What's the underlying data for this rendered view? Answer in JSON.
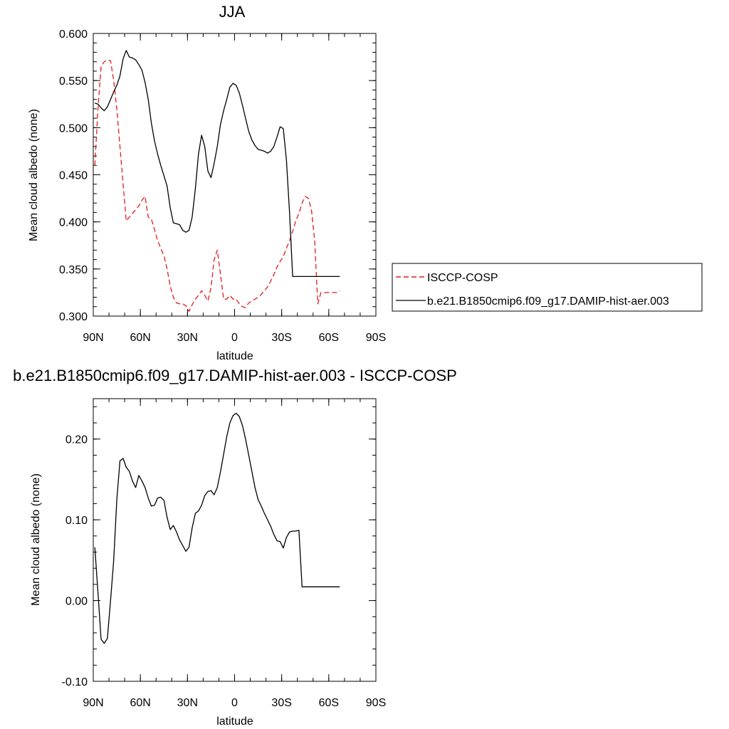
{
  "chart_data": [
    {
      "type": "line",
      "title": "JJA",
      "xlabel": "latitude",
      "ylabel": "Mean cloud albedo (none)",
      "xlim": [
        90,
        -90
      ],
      "ylim": [
        0.3,
        0.6
      ],
      "x_ticks": [
        90,
        60,
        30,
        0,
        -30,
        -60,
        -90
      ],
      "x_tick_labels": [
        "90N",
        "60N",
        "30N",
        "0",
        "30S",
        "60S",
        "90S"
      ],
      "y_ticks": [
        0.3,
        0.35,
        0.4,
        0.45,
        0.5,
        0.55,
        0.6
      ],
      "y_tick_labels": [
        "0.300",
        "0.350",
        "0.400",
        "0.450",
        "0.500",
        "0.550",
        "0.600"
      ],
      "legend_position": "right",
      "series": [
        {
          "name": "ISCCP-COSP",
          "color": "#e31a1c",
          "dash": "dashed",
          "x": [
            89,
            87,
            85,
            83,
            81,
            79,
            77,
            75,
            73,
            71,
            69,
            67,
            65,
            63,
            61,
            59,
            57,
            55,
            53,
            51,
            49,
            47,
            45,
            43,
            41,
            39,
            37,
            35,
            33,
            31,
            29,
            27,
            25,
            23,
            21,
            19,
            17,
            15,
            13,
            11,
            9,
            7,
            5,
            3,
            1,
            -1,
            -3,
            -5,
            -7,
            -9,
            -11,
            -13,
            -15,
            -17,
            -19,
            -21,
            -23,
            -25,
            -27,
            -29,
            -31,
            -33,
            -35,
            -37,
            -39,
            -41,
            -43,
            -45,
            -47,
            -49,
            -51,
            -53,
            -55,
            -57,
            -59,
            -61,
            -63,
            -65,
            -67
          ],
          "y": [
            0.46,
            0.52,
            0.565,
            0.57,
            0.572,
            0.571,
            0.55,
            0.52,
            0.48,
            0.44,
            0.401,
            0.405,
            0.409,
            0.413,
            0.417,
            0.423,
            0.427,
            0.405,
            0.403,
            0.392,
            0.38,
            0.372,
            0.364,
            0.35,
            0.332,
            0.32,
            0.314,
            0.313,
            0.313,
            0.311,
            0.305,
            0.312,
            0.318,
            0.322,
            0.327,
            0.322,
            0.316,
            0.33,
            0.36,
            0.37,
            0.345,
            0.318,
            0.318,
            0.322,
            0.318,
            0.318,
            0.313,
            0.31,
            0.309,
            0.314,
            0.316,
            0.318,
            0.32,
            0.323,
            0.327,
            0.331,
            0.337,
            0.344,
            0.352,
            0.358,
            0.363,
            0.372,
            0.38,
            0.39,
            0.401,
            0.409,
            0.42,
            0.427,
            0.425,
            0.412,
            0.38,
            0.313,
            0.325,
            0.325,
            0.325,
            0.325,
            0.325,
            0.325,
            0.327
          ]
        },
        {
          "name": "b.e21.B1850cmip6.f09_g17.DAMIP-hist-aer.003",
          "color": "#000000",
          "dash": "solid",
          "x": [
            89,
            87,
            85,
            83,
            81,
            79,
            77,
            75,
            73,
            71,
            69,
            67,
            65,
            63,
            61,
            59,
            57,
            55,
            53,
            51,
            49,
            47,
            45,
            43,
            41,
            39,
            37,
            35,
            33,
            31,
            29,
            27,
            25,
            23,
            21,
            19,
            17,
            15,
            13,
            11,
            9,
            7,
            5,
            3,
            1,
            -1,
            -3,
            -5,
            -7,
            -9,
            -11,
            -13,
            -15,
            -17,
            -19,
            -21,
            -23,
            -25,
            -27,
            -29,
            -31,
            -33,
            -35,
            -37,
            -39,
            -41,
            -43,
            -45,
            -47,
            -49,
            -51,
            -53,
            -55,
            -57,
            -59,
            -61,
            -63,
            -65,
            -67
          ],
          "y": [
            0.526,
            0.525,
            0.521,
            0.518,
            0.522,
            0.53,
            0.538,
            0.545,
            0.555,
            0.573,
            0.582,
            0.575,
            0.574,
            0.572,
            0.567,
            0.561,
            0.548,
            0.53,
            0.505,
            0.486,
            0.472,
            0.46,
            0.449,
            0.438,
            0.415,
            0.399,
            0.398,
            0.397,
            0.391,
            0.389,
            0.391,
            0.405,
            0.435,
            0.472,
            0.492,
            0.48,
            0.454,
            0.447,
            0.462,
            0.48,
            0.503,
            0.518,
            0.53,
            0.543,
            0.547,
            0.545,
            0.537,
            0.524,
            0.51,
            0.496,
            0.487,
            0.481,
            0.477,
            0.476,
            0.475,
            0.473,
            0.475,
            0.48,
            0.49,
            0.501,
            0.499,
            0.466,
            0.41,
            0.342,
            0.342,
            0.342,
            0.342,
            0.342,
            0.342,
            0.342,
            0.342,
            0.342,
            0.342,
            0.342,
            0.342,
            0.342,
            0.342,
            0.342,
            0.342
          ]
        }
      ]
    },
    {
      "type": "line",
      "title": "b.e21.B1850cmip6.f09_g17.DAMIP-hist-aer.003 - ISCCP-COSP",
      "xlabel": "latitude",
      "ylabel": "Mean cloud albedo (none)",
      "xlim": [
        90,
        -90
      ],
      "ylim": [
        -0.1,
        0.25
      ],
      "x_ticks": [
        90,
        60,
        30,
        0,
        -30,
        -60,
        -90
      ],
      "x_tick_labels": [
        "90N",
        "60N",
        "30N",
        "0",
        "30S",
        "60S",
        "90S"
      ],
      "y_ticks": [
        -0.1,
        0.0,
        0.1,
        0.2
      ],
      "y_tick_labels": [
        "-0.10",
        "0.00",
        "0.10",
        "0.20"
      ],
      "series": [
        {
          "color": "#000000",
          "dash": "solid",
          "x": [
            89,
            87,
            85,
            83,
            81,
            79,
            77,
            75,
            73,
            71,
            69,
            67,
            65,
            63,
            61,
            59,
            57,
            55,
            53,
            51,
            49,
            47,
            45,
            43,
            41,
            39,
            37,
            35,
            33,
            31,
            29,
            27,
            25,
            23,
            21,
            19,
            17,
            15,
            13,
            11,
            9,
            7,
            5,
            3,
            1,
            -1,
            -3,
            -5,
            -7,
            -9,
            -11,
            -13,
            -15,
            -17,
            -19,
            -21,
            -23,
            -25,
            -27,
            -29,
            -31,
            -33,
            -35,
            -37,
            -39,
            -41,
            -43,
            -45,
            -47,
            -49,
            -51,
            -53,
            -55,
            -57,
            -59,
            -61,
            -63,
            -65,
            -67
          ],
          "y": [
            0.066,
            0.01,
            -0.048,
            -0.053,
            -0.047,
            0.0,
            0.05,
            0.125,
            0.173,
            0.176,
            0.165,
            0.16,
            0.148,
            0.14,
            0.155,
            0.148,
            0.14,
            0.127,
            0.117,
            0.118,
            0.127,
            0.128,
            0.124,
            0.103,
            0.088,
            0.093,
            0.085,
            0.075,
            0.068,
            0.061,
            0.066,
            0.09,
            0.108,
            0.111,
            0.118,
            0.13,
            0.135,
            0.136,
            0.131,
            0.14,
            0.159,
            0.181,
            0.203,
            0.22,
            0.229,
            0.232,
            0.228,
            0.217,
            0.2,
            0.18,
            0.16,
            0.14,
            0.125,
            0.117,
            0.108,
            0.1,
            0.092,
            0.082,
            0.074,
            0.073,
            0.065,
            0.078,
            0.085,
            0.086,
            0.086,
            0.087,
            0.017,
            0.017,
            0.017,
            0.017,
            0.017,
            0.017,
            0.017,
            0.017,
            0.017,
            0.017,
            0.017,
            0.017,
            0.017
          ]
        }
      ]
    }
  ]
}
